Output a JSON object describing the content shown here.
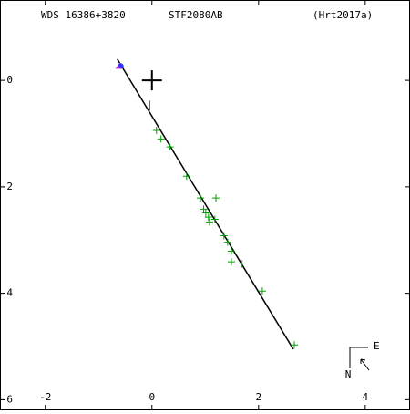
{
  "chart_data": {
    "type": "scatter",
    "title_left": "WDS 16386+3820",
    "title": "STF2080AB",
    "title_right": "(Hrt2017a)",
    "x": [
      0.085,
      0.17,
      0.34,
      0.65,
      0.91,
      1.2,
      0.97,
      1.01,
      1.06,
      1.08,
      1.18,
      1.35,
      1.42,
      1.49,
      1.49,
      1.69,
      2.07,
      2.67
    ],
    "y": [
      -0.94,
      -1.1,
      -1.25,
      -1.8,
      -2.21,
      -2.21,
      -2.42,
      -2.49,
      -2.57,
      -2.66,
      -2.61,
      -2.92,
      -3.04,
      -3.21,
      -3.41,
      -3.45,
      -3.96,
      -4.97
    ],
    "color": "#00a000",
    "orbit": {
      "x": [
        -0.65,
        2.65
      ],
      "y": [
        0.4,
        -5.05
      ],
      "color": "#000000"
    },
    "primary": {
      "x": [
        0
      ],
      "y": [
        0
      ],
      "color": "#000000"
    },
    "predicted": {
      "x": [
        -0.6
      ],
      "y": [
        0.27
      ],
      "color": "#3030ff"
    },
    "node_line": {
      "x": [
        -0.05,
        -0.05
      ],
      "y": [
        -0.38,
        -0.57
      ]
    },
    "xlim": [
      -2.85,
      4.84
    ],
    "ylim": [
      -6.2,
      1.51
    ],
    "xticks": [
      -2,
      0,
      2,
      4
    ],
    "yticks": [
      0,
      -2,
      -4,
      -6
    ],
    "compass": {
      "east": "E",
      "north": "N"
    }
  }
}
